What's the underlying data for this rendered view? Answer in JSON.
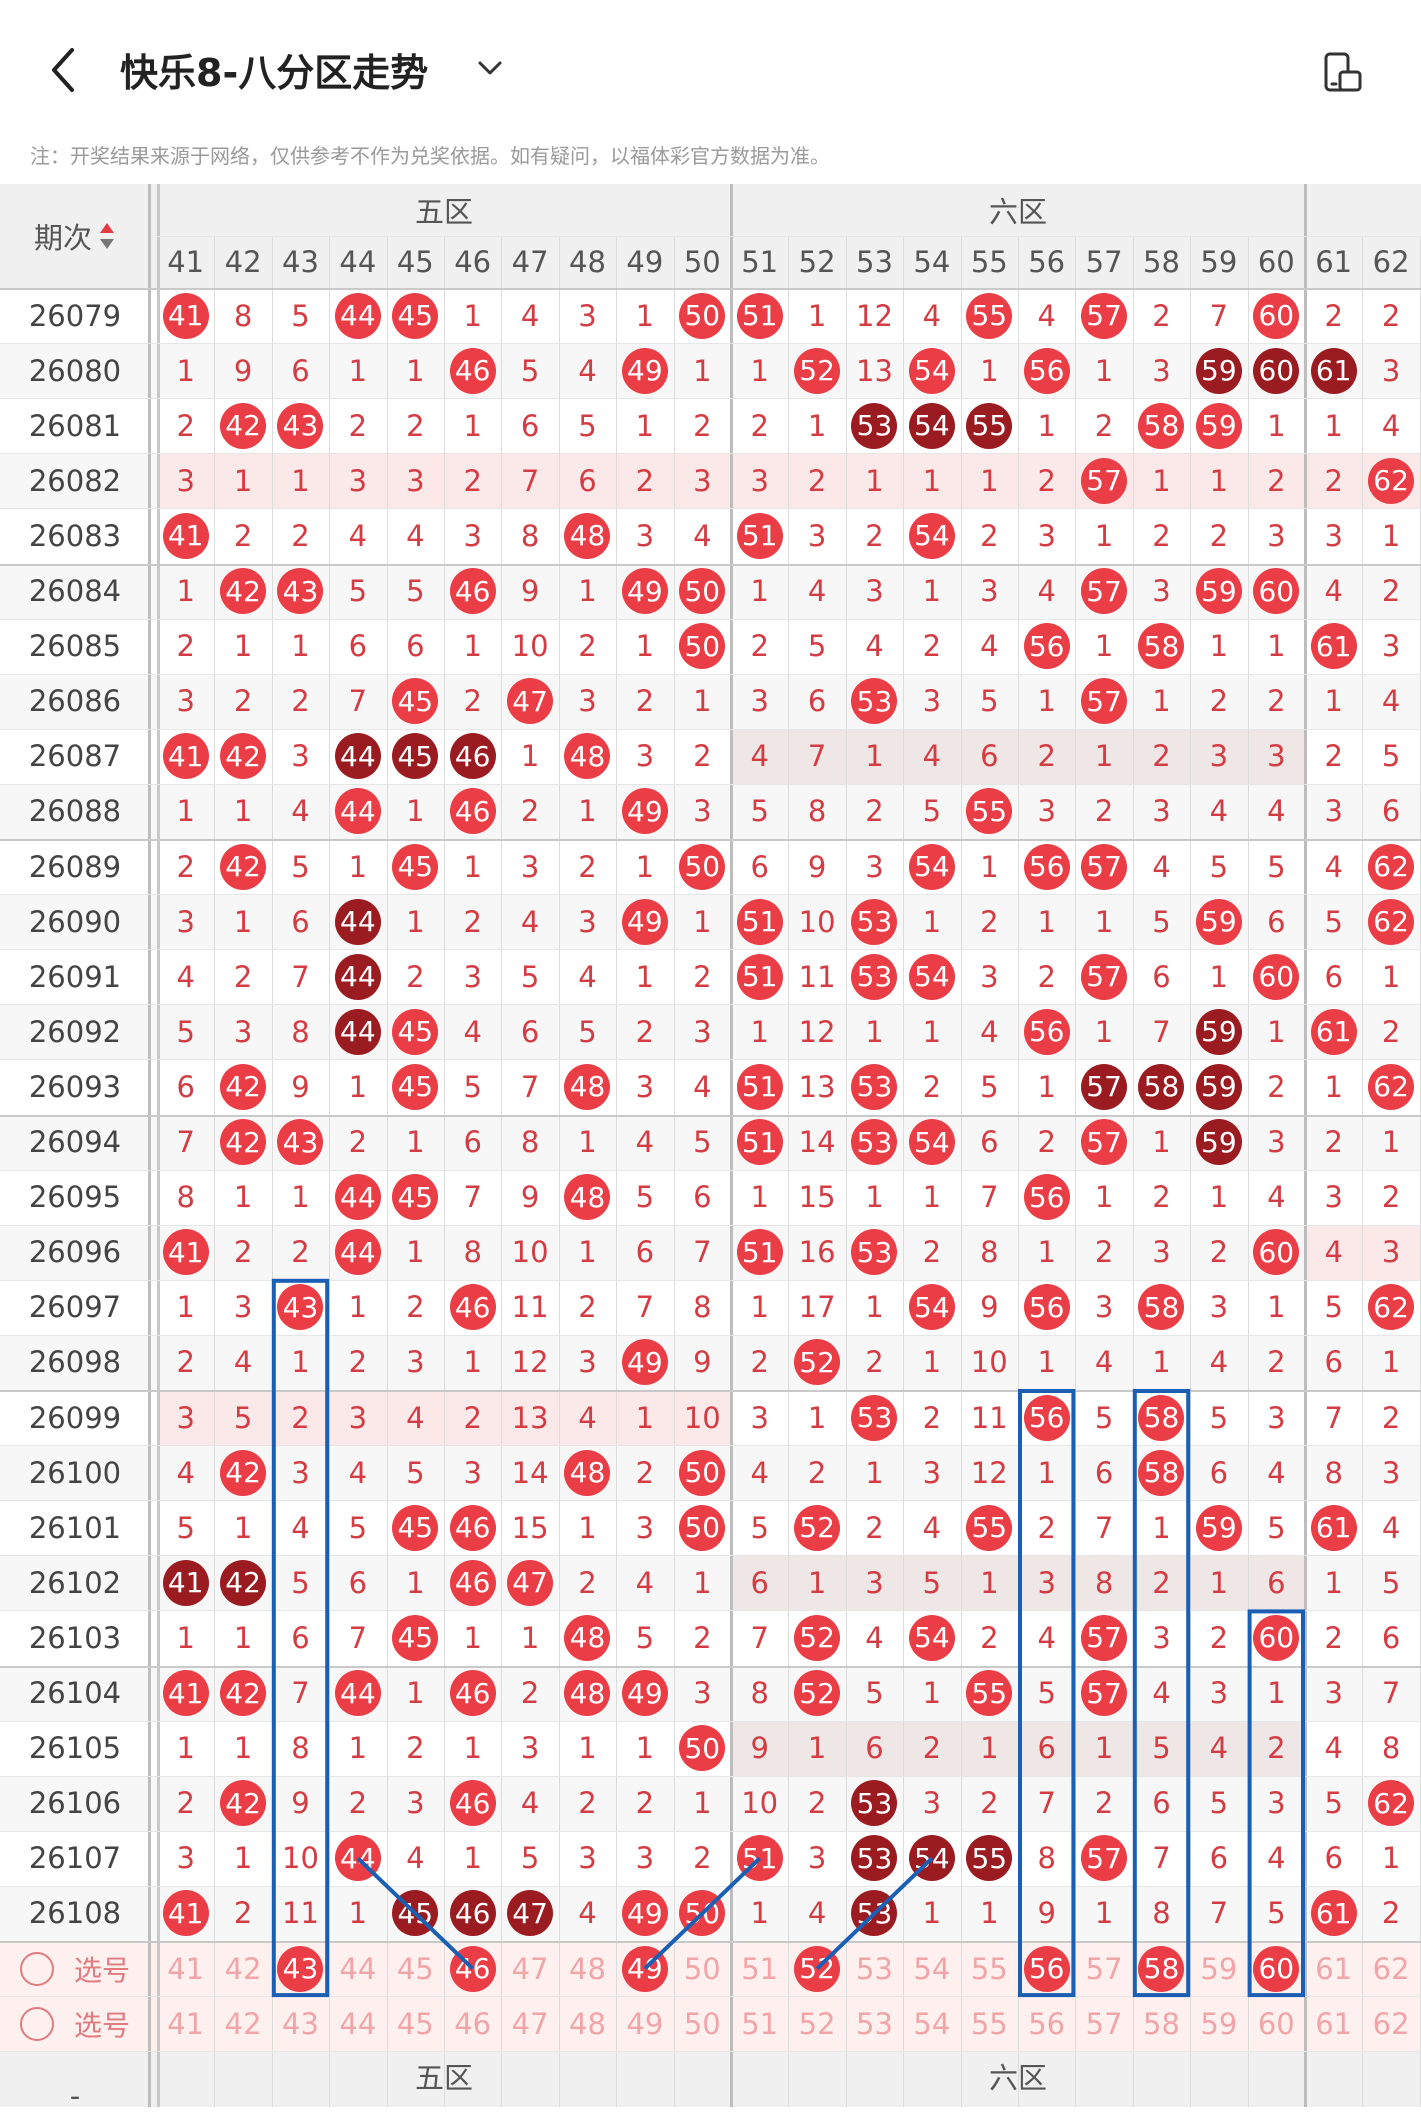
{
  "header": {
    "title": "快乐8-八分区走势"
  },
  "notice": "注：开奖结果来源于网络，仅供参考不作为兑奖依据。如有疑问，以福体彩官方数据为准。",
  "table": {
    "period_header": "期次",
    "zones_top": [
      {
        "label": "五区",
        "from": 41,
        "to": 50
      },
      {
        "label": "六区",
        "from": 51,
        "to": 60
      },
      {
        "label": "",
        "from": 61,
        "to": 62
      }
    ],
    "zones_bottom": [
      "五区",
      "六区"
    ],
    "columns": [
      "41",
      "42",
      "43",
      "44",
      "45",
      "46",
      "47",
      "48",
      "49",
      "50",
      "51",
      "52",
      "53",
      "54",
      "55",
      "56",
      "57",
      "58",
      "59",
      "60",
      "61",
      "62"
    ],
    "rows": [
      {
        "p": "26079",
        "v": [
          "41",
          "8",
          "5",
          "44",
          "45",
          "1",
          "4",
          "3",
          "1",
          "50",
          "51",
          "1",
          "12",
          "4",
          "55",
          "4",
          "57",
          "2",
          "7",
          "60",
          "2",
          "2"
        ]
      },
      {
        "p": "26080",
        "v": [
          "1",
          "9",
          "6",
          "1",
          "1",
          "46",
          "5",
          "4",
          "49",
          "1",
          "1",
          "52",
          "13",
          "54",
          "1",
          "56",
          "1",
          "3",
          "59",
          "60",
          "61",
          "3"
        ]
      },
      {
        "p": "26081",
        "v": [
          "2",
          "42",
          "43",
          "2",
          "2",
          "1",
          "6",
          "5",
          "1",
          "2",
          "2",
          "1",
          "53",
          "54",
          "55",
          "1",
          "2",
          "58",
          "59",
          "1",
          "1",
          "4"
        ]
      },
      {
        "p": "26082",
        "v": [
          "3",
          "1",
          "1",
          "3",
          "3",
          "2",
          "7",
          "6",
          "2",
          "3",
          "3",
          "2",
          "1",
          "1",
          "1",
          "2",
          "57",
          "1",
          "1",
          "2",
          "2",
          "62"
        ]
      },
      {
        "p": "26083",
        "v": [
          "41",
          "2",
          "2",
          "4",
          "4",
          "3",
          "8",
          "48",
          "3",
          "4",
          "51",
          "3",
          "2",
          "54",
          "2",
          "3",
          "1",
          "2",
          "2",
          "3",
          "3",
          "1"
        ]
      },
      {
        "p": "26084",
        "v": [
          "1",
          "42",
          "43",
          "5",
          "5",
          "46",
          "9",
          "1",
          "49",
          "50",
          "1",
          "4",
          "3",
          "1",
          "3",
          "4",
          "57",
          "3",
          "59",
          "60",
          "4",
          "2"
        ]
      },
      {
        "p": "26085",
        "v": [
          "2",
          "1",
          "1",
          "6",
          "6",
          "1",
          "10",
          "2",
          "1",
          "50",
          "2",
          "5",
          "4",
          "2",
          "4",
          "56",
          "1",
          "58",
          "1",
          "1",
          "61",
          "3"
        ]
      },
      {
        "p": "26086",
        "v": [
          "3",
          "2",
          "2",
          "7",
          "45",
          "2",
          "47",
          "3",
          "2",
          "1",
          "3",
          "6",
          "53",
          "3",
          "5",
          "1",
          "57",
          "1",
          "2",
          "2",
          "1",
          "4"
        ]
      },
      {
        "p": "26087",
        "v": [
          "41",
          "42",
          "3",
          "44",
          "45",
          "46",
          "1",
          "48",
          "3",
          "2",
          "4",
          "7",
          "1",
          "4",
          "6",
          "2",
          "1",
          "2",
          "3",
          "3",
          "2",
          "5"
        ]
      },
      {
        "p": "26088",
        "v": [
          "1",
          "1",
          "4",
          "44",
          "1",
          "46",
          "2",
          "1",
          "49",
          "3",
          "5",
          "8",
          "2",
          "5",
          "55",
          "3",
          "2",
          "3",
          "4",
          "4",
          "3",
          "6"
        ]
      },
      {
        "p": "26089",
        "v": [
          "2",
          "42",
          "5",
          "1",
          "45",
          "1",
          "3",
          "2",
          "1",
          "50",
          "6",
          "9",
          "3",
          "54",
          "1",
          "56",
          "57",
          "4",
          "5",
          "5",
          "4",
          "62"
        ]
      },
      {
        "p": "26090",
        "v": [
          "3",
          "1",
          "6",
          "44",
          "1",
          "2",
          "4",
          "3",
          "49",
          "1",
          "51",
          "10",
          "53",
          "1",
          "2",
          "1",
          "1",
          "5",
          "59",
          "6",
          "5",
          "62"
        ]
      },
      {
        "p": "26091",
        "v": [
          "4",
          "2",
          "7",
          "44",
          "2",
          "3",
          "5",
          "4",
          "1",
          "2",
          "51",
          "11",
          "53",
          "54",
          "3",
          "2",
          "57",
          "6",
          "1",
          "60",
          "6",
          "1"
        ]
      },
      {
        "p": "26092",
        "v": [
          "5",
          "3",
          "8",
          "44",
          "45",
          "4",
          "6",
          "5",
          "2",
          "3",
          "1",
          "12",
          "1",
          "1",
          "4",
          "56",
          "1",
          "7",
          "59",
          "1",
          "61",
          "2"
        ]
      },
      {
        "p": "26093",
        "v": [
          "6",
          "42",
          "9",
          "1",
          "45",
          "5",
          "7",
          "48",
          "3",
          "4",
          "51",
          "13",
          "53",
          "2",
          "5",
          "1",
          "57",
          "58",
          "59",
          "2",
          "1",
          "62"
        ]
      },
      {
        "p": "26094",
        "v": [
          "7",
          "42",
          "43",
          "2",
          "1",
          "6",
          "8",
          "1",
          "4",
          "5",
          "51",
          "14",
          "53",
          "54",
          "6",
          "2",
          "57",
          "1",
          "59",
          "3",
          "2",
          "1"
        ]
      },
      {
        "p": "26095",
        "v": [
          "8",
          "1",
          "1",
          "44",
          "45",
          "7",
          "9",
          "48",
          "5",
          "6",
          "1",
          "15",
          "1",
          "1",
          "7",
          "56",
          "1",
          "2",
          "1",
          "4",
          "3",
          "2"
        ]
      },
      {
        "p": "26096",
        "v": [
          "41",
          "2",
          "2",
          "44",
          "1",
          "8",
          "10",
          "1",
          "6",
          "7",
          "51",
          "16",
          "53",
          "2",
          "8",
          "1",
          "2",
          "3",
          "2",
          "60",
          "4",
          "3"
        ]
      },
      {
        "p": "26097",
        "v": [
          "1",
          "3",
          "43",
          "1",
          "2",
          "46",
          "11",
          "2",
          "7",
          "8",
          "1",
          "17",
          "1",
          "54",
          "9",
          "56",
          "3",
          "58",
          "3",
          "1",
          "5",
          "62"
        ]
      },
      {
        "p": "26098",
        "v": [
          "2",
          "4",
          "1",
          "2",
          "3",
          "1",
          "12",
          "3",
          "49",
          "9",
          "2",
          "52",
          "2",
          "1",
          "10",
          "1",
          "4",
          "1",
          "4",
          "2",
          "6",
          "1"
        ]
      },
      {
        "p": "26099",
        "v": [
          "3",
          "5",
          "2",
          "3",
          "4",
          "2",
          "13",
          "4",
          "1",
          "10",
          "3",
          "1",
          "53",
          "2",
          "11",
          "56",
          "5",
          "58",
          "5",
          "3",
          "7",
          "2"
        ]
      },
      {
        "p": "26100",
        "v": [
          "4",
          "42",
          "3",
          "4",
          "5",
          "3",
          "14",
          "48",
          "2",
          "50",
          "4",
          "2",
          "1",
          "3",
          "12",
          "1",
          "6",
          "58",
          "6",
          "4",
          "8",
          "3"
        ]
      },
      {
        "p": "26101",
        "v": [
          "5",
          "1",
          "4",
          "5",
          "45",
          "46",
          "15",
          "1",
          "3",
          "50",
          "5",
          "52",
          "2",
          "4",
          "55",
          "2",
          "7",
          "1",
          "59",
          "5",
          "61",
          "4"
        ]
      },
      {
        "p": "26102",
        "v": [
          "41",
          "42",
          "5",
          "6",
          "1",
          "46",
          "47",
          "2",
          "4",
          "1",
          "6",
          "1",
          "3",
          "5",
          "1",
          "3",
          "8",
          "2",
          "1",
          "6",
          "1",
          "5"
        ]
      },
      {
        "p": "26103",
        "v": [
          "1",
          "1",
          "6",
          "7",
          "45",
          "1",
          "1",
          "48",
          "5",
          "2",
          "7",
          "52",
          "4",
          "54",
          "2",
          "4",
          "57",
          "3",
          "2",
          "60",
          "2",
          "6"
        ]
      },
      {
        "p": "26104",
        "v": [
          "41",
          "42",
          "7",
          "44",
          "1",
          "46",
          "2",
          "48",
          "49",
          "3",
          "8",
          "52",
          "5",
          "1",
          "55",
          "5",
          "57",
          "4",
          "3",
          "1",
          "3",
          "7"
        ]
      },
      {
        "p": "26105",
        "v": [
          "1",
          "1",
          "8",
          "1",
          "2",
          "1",
          "3",
          "1",
          "1",
          "50",
          "9",
          "1",
          "6",
          "2",
          "1",
          "6",
          "1",
          "5",
          "4",
          "2",
          "4",
          "8"
        ]
      },
      {
        "p": "26106",
        "v": [
          "2",
          "42",
          "9",
          "2",
          "3",
          "46",
          "4",
          "2",
          "2",
          "1",
          "10",
          "2",
          "53",
          "3",
          "2",
          "7",
          "2",
          "6",
          "5",
          "3",
          "5",
          "62"
        ]
      },
      {
        "p": "26107",
        "v": [
          "3",
          "1",
          "10",
          "44",
          "4",
          "1",
          "5",
          "3",
          "3",
          "2",
          "51",
          "3",
          "53",
          "54",
          "55",
          "8",
          "57",
          "7",
          "6",
          "4",
          "6",
          "1"
        ]
      },
      {
        "p": "26108",
        "v": [
          "41",
          "2",
          "11",
          "1",
          "45",
          "46",
          "47",
          "4",
          "49",
          "50",
          "1",
          "4",
          "53",
          "1",
          "1",
          "9",
          "1",
          "8",
          "7",
          "5",
          "61",
          "2"
        ]
      }
    ],
    "select_rows": [
      {
        "label": "选号",
        "v": [
          "41",
          "42",
          "43",
          "44",
          "45",
          "46",
          "47",
          "48",
          "49",
          "50",
          "51",
          "52",
          "53",
          "54",
          "55",
          "56",
          "57",
          "58",
          "59",
          "60",
          "61",
          "62"
        ],
        "selected": [
          "43",
          "46",
          "49",
          "52",
          "56",
          "58",
          "60"
        ]
      },
      {
        "label": "选号",
        "v": [
          "41",
          "42",
          "43",
          "44",
          "45",
          "46",
          "47",
          "48",
          "49",
          "50",
          "51",
          "52",
          "53",
          "54",
          "55",
          "56",
          "57",
          "58",
          "59",
          "60",
          "61",
          "62"
        ],
        "selected": []
      }
    ],
    "bottom_period_mark": "-"
  },
  "colors": {
    "hit": "#ea3d45",
    "hit_dark": "#9a1b20",
    "miss": "#d43c43",
    "annotation": "#1a5fb4"
  }
}
